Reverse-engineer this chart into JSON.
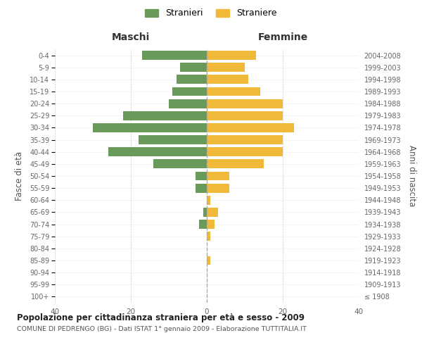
{
  "age_groups": [
    "100+",
    "95-99",
    "90-94",
    "85-89",
    "80-84",
    "75-79",
    "70-74",
    "65-69",
    "60-64",
    "55-59",
    "50-54",
    "45-49",
    "40-44",
    "35-39",
    "30-34",
    "25-29",
    "20-24",
    "15-19",
    "10-14",
    "5-9",
    "0-4"
  ],
  "birth_years": [
    "≤ 1908",
    "1909-1913",
    "1914-1918",
    "1919-1923",
    "1924-1928",
    "1929-1933",
    "1934-1938",
    "1939-1943",
    "1944-1948",
    "1949-1953",
    "1954-1958",
    "1959-1963",
    "1964-1968",
    "1969-1973",
    "1974-1978",
    "1979-1983",
    "1984-1988",
    "1989-1993",
    "1994-1998",
    "1999-2003",
    "2004-2008"
  ],
  "maschi": [
    0,
    0,
    0,
    0,
    0,
    0,
    2,
    1,
    0,
    3,
    3,
    14,
    26,
    18,
    30,
    22,
    10,
    9,
    8,
    7,
    17
  ],
  "femmine": [
    0,
    0,
    0,
    1,
    0,
    1,
    2,
    3,
    1,
    6,
    6,
    15,
    20,
    20,
    23,
    20,
    20,
    14,
    11,
    10,
    13
  ],
  "maschi_color": "#6a9a5a",
  "femmine_color": "#f0b93a",
  "background_color": "#ffffff",
  "grid_color": "#cccccc",
  "title": "Popolazione per cittadinanza straniera per età e sesso - 2009",
  "subtitle": "COMUNE DI PEDRENGO (BG) - Dati ISTAT 1° gennaio 2009 - Elaborazione TUTTITALIA.IT",
  "xlabel_left": "Maschi",
  "xlabel_right": "Femmine",
  "ylabel_left": "Fasce di età",
  "ylabel_right": "Anni di nascita",
  "legend_maschi": "Stranieri",
  "legend_femmine": "Straniere",
  "xlim": 40,
  "bar_height": 0.75
}
